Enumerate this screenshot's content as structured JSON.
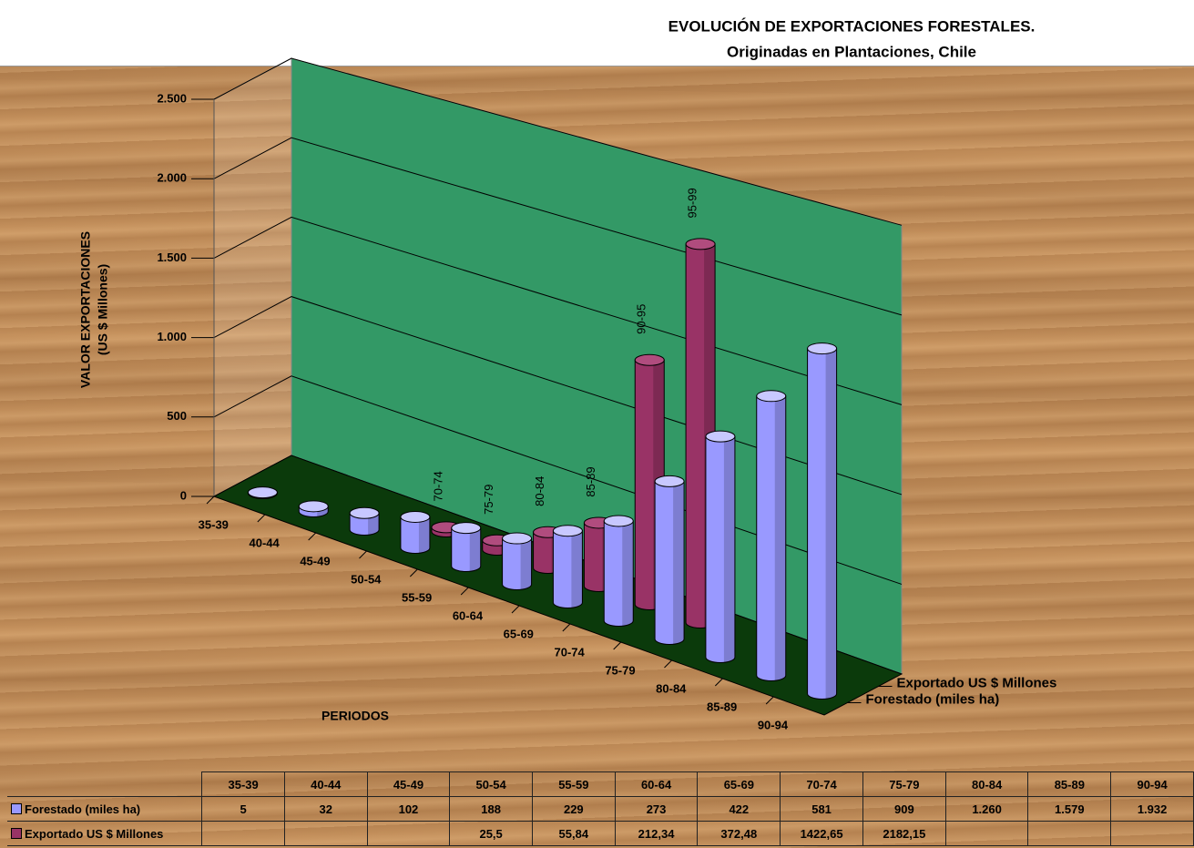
{
  "chart_data": {
    "type": "bar3d",
    "title": "EVOLUCIÓN DE EXPORTACIONES FORESTALES.",
    "subtitle": "Originadas en Plantaciones,  Chile",
    "ylabel_lines": [
      "VALOR EXPORTACIONES",
      "(US $ Millones)"
    ],
    "xlabel": "PERIODOS",
    "categories": [
      "35-39",
      "40-44",
      "45-49",
      "50-54",
      "55-59",
      "60-64",
      "65-69",
      "70-74",
      "75-79",
      "80-84",
      "85-89",
      "90-94"
    ],
    "series": [
      {
        "name": "Forestado (miles ha)",
        "color": "#9999ff",
        "values": [
          5,
          32,
          102,
          188,
          229,
          273,
          422,
          581,
          909,
          1260,
          1579,
          1932
        ],
        "value_labels": [
          "5",
          "32",
          "102",
          "188",
          "229",
          "273",
          "422",
          "581",
          "909",
          "1.260",
          "1.579",
          "1.932"
        ]
      },
      {
        "name": "Exportado US $ Millones",
        "color": "#993366",
        "values": [
          null,
          null,
          null,
          25.5,
          55.84,
          212.34,
          372.48,
          1422.65,
          2182.15,
          null,
          null,
          null
        ],
        "value_labels": [
          null,
          null,
          null,
          "25,5",
          "55,84",
          "212,34",
          "372,48",
          "1422,65",
          "2182,15",
          null,
          null,
          null
        ]
      }
    ],
    "annotations": [
      "70-74",
      "75-79",
      "80-84",
      "85-89",
      "90-95",
      "95-99"
    ],
    "ylim": [
      0,
      2500
    ],
    "yticks": [
      0,
      500,
      {
        "value": 1000,
        "label": "1.000"
      },
      {
        "value": 1500,
        "label": "1.500"
      },
      {
        "value": 2000,
        "label": "2.000"
      },
      {
        "value": 2500,
        "label": "2.500"
      }
    ],
    "grid": true
  }
}
